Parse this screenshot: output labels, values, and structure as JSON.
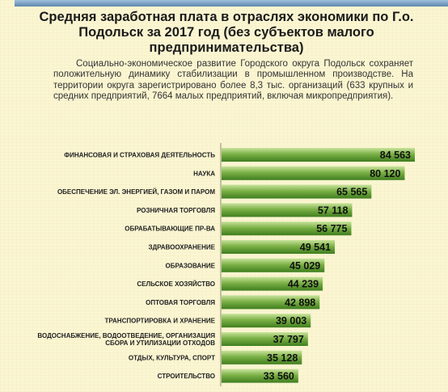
{
  "title": "Средняя заработная плата в отраслях экономики по Г.о. Подольск за 2017 год (без субъектов малого предпринимательства)",
  "paragraph": "Социально-экономическое развитие Городского округа Подольск сохраняет положительную динамику стабилизации в промышленном производстве. На территории округа зарегистрировано более 8,3 тыс. организаций (633 крупных и средних предприятий, 7664 малых предприятий, включая микропредприятия).",
  "colors": {
    "bar_light": "#b8d98a",
    "bar_dark": "#3f7e1f",
    "accent_bar": "#7aa3c8"
  },
  "chart_data": {
    "type": "bar",
    "orientation": "horizontal",
    "title": "",
    "xlabel": "",
    "ylabel": "",
    "xlim": [
      0,
      90000
    ],
    "categories": [
      "ФИНАНСОВАЯ И СТРАХОВАЯ ДЕЯТЕЛЬНОСТЬ",
      "НАУКА",
      "ОБЕСПЕЧЕНИЕ ЭЛ. ЭНЕРГИЕЙ, ГАЗОМ И ПАРОМ",
      "РОЗНИЧНАЯ ТОРГОВЛЯ",
      "ОБРАБАТЫВАЮЩИЕ ПР-ВА",
      "ЗДРАВООХРАНЕНИЕ",
      "ОБРАЗОВАНИЕ",
      "СЕЛЬСКОЕ ХОЗЯЙСТВО",
      "ОПТОВАЯ ТОРГОВЛЯ",
      "ТРАНСПОРТИРОВКА И ХРАНЕНИЕ",
      "ВОДОСНАБЖЕНИЕ, ВОДООТВЕДЕНИЕ, ОРГАНИЗАЦИЯ СБОРА И УТИЛИЗАЦИИ ОТХОДОВ",
      "ОТДЫХ, КУЛЬТУРА, СПОРТ",
      "СТРОИТЕЛЬСТВО"
    ],
    "values": [
      84563,
      80120,
      65565,
      57118,
      56775,
      49541,
      45029,
      44239,
      42898,
      39003,
      37797,
      35128,
      33560
    ],
    "value_labels": [
      "84 563",
      "80 120",
      "65 565",
      "57 118",
      "56 775",
      "49 541",
      "45 029",
      "44 239",
      "42 898",
      "39 003",
      "37 797",
      "35 128",
      "33 560"
    ],
    "grid": false,
    "legend": "none"
  }
}
